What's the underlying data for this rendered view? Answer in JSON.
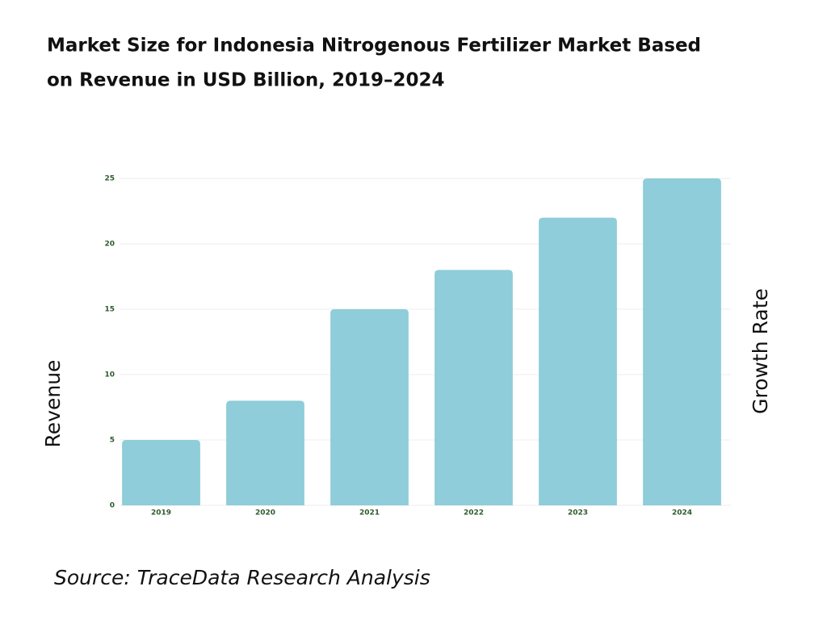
{
  "chart_data": {
    "type": "bar",
    "title": [
      "Market Size for Indonesia Nitrogenous Fertilizer Market Based",
      "on Revenue in USD Billion, 2019–2024"
    ],
    "y_label": "Revenue",
    "y2_label": "Growth Rate",
    "source": "Source: TraceData Research Analysis",
    "categories": [
      "2019",
      "2020",
      "2021",
      "2022",
      "2023",
      "2024"
    ],
    "values": [
      5,
      8,
      15,
      18,
      22,
      25
    ],
    "color": "#8ecdd9",
    "ylim": [
      0,
      25
    ],
    "yticks": [
      0,
      5,
      10,
      15,
      20,
      25
    ],
    "grid": true
  }
}
